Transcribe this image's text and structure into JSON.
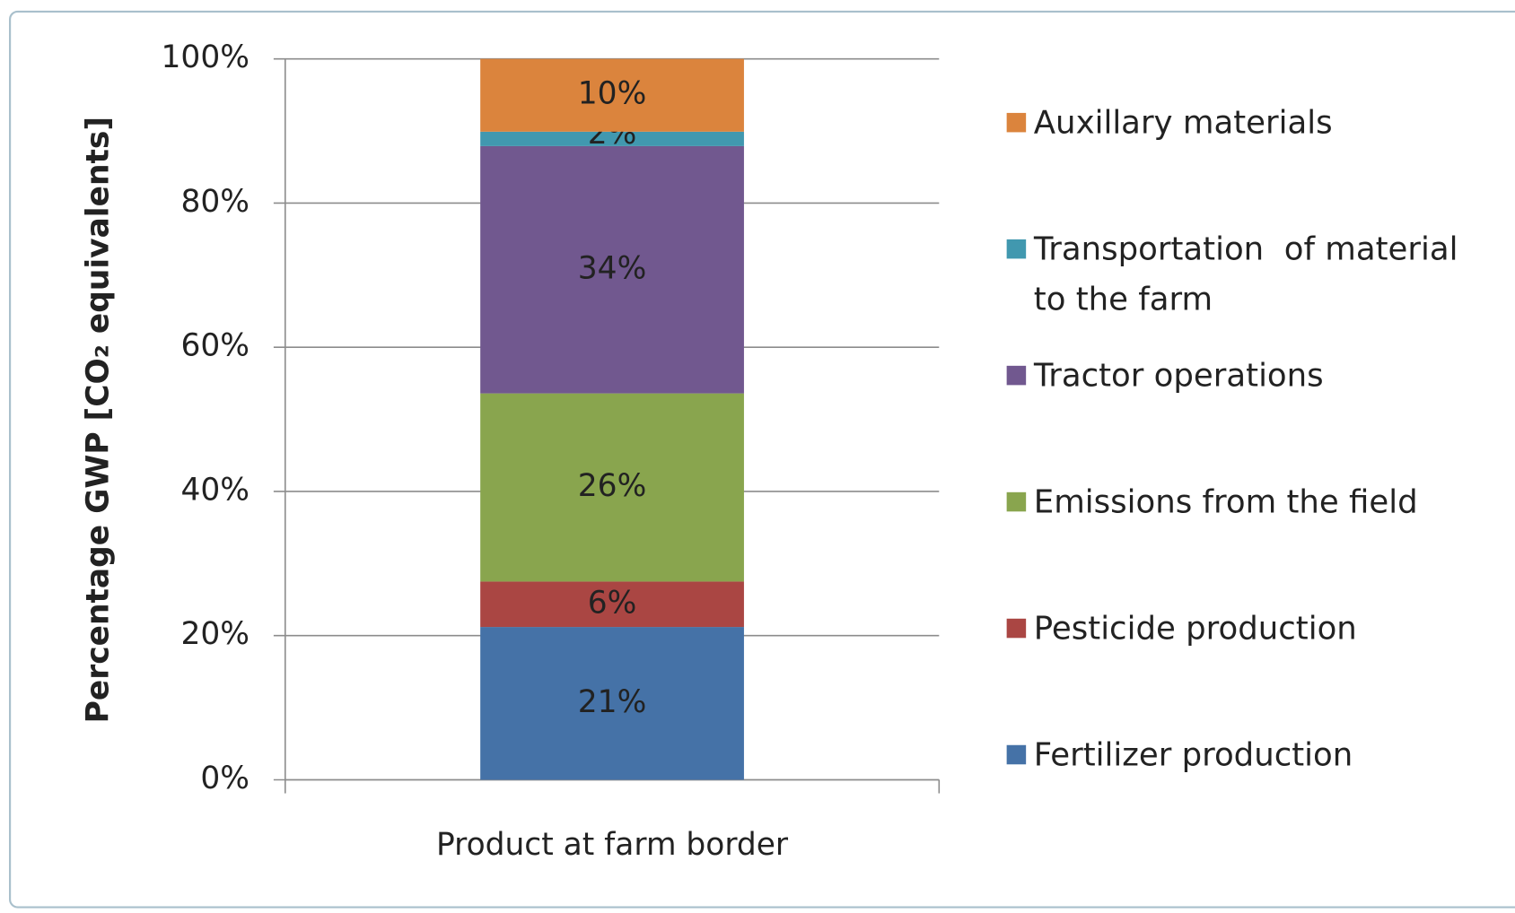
{
  "chart_data": {
    "type": "stacked_bar",
    "ylabel": "Percentage GWP [CO₂ equivalents]",
    "categories": [
      "Product at farm border"
    ],
    "series": [
      {
        "name": "Fertilizer production",
        "color": "#4572a7",
        "values": [
          21.2
        ],
        "value_labels": [
          "21%"
        ]
      },
      {
        "name": "Pesticide production",
        "color": "#aa4643",
        "values": [
          6.3
        ],
        "value_labels": [
          "6%"
        ]
      },
      {
        "name": "Emissions from the field",
        "color": "#89a54e",
        "values": [
          26.1
        ],
        "value_labels": [
          "26%"
        ]
      },
      {
        "name": "Tractor operations",
        "color": "#71588f",
        "values": [
          34.3
        ],
        "value_labels": [
          "34%"
        ]
      },
      {
        "name": "Transportation  of material to the farm",
        "color": "#4198af",
        "values": [
          2.0
        ],
        "value_labels": [
          "2%"
        ]
      },
      {
        "name": "Auxillary materials",
        "color": "#db843d",
        "values": [
          10.1
        ],
        "value_labels": [
          "10%"
        ]
      }
    ],
    "ylim": [
      0,
      100
    ],
    "yticks": [
      {
        "value": 0,
        "label": "0%"
      },
      {
        "value": 20,
        "label": "20%"
      },
      {
        "value": 40,
        "label": "40%"
      },
      {
        "value": 60,
        "label": "60%"
      },
      {
        "value": 80,
        "label": "80%"
      },
      {
        "value": 100,
        "label": "100%"
      }
    ],
    "grid": true,
    "legend": "right"
  }
}
